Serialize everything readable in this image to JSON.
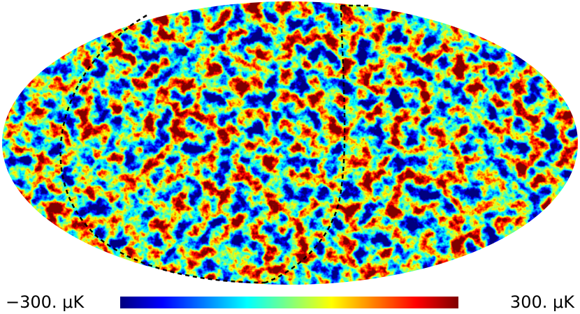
{
  "colorbar": {
    "labels": [
      "−300. μK",
      "300. μK"
    ]
  }
}
